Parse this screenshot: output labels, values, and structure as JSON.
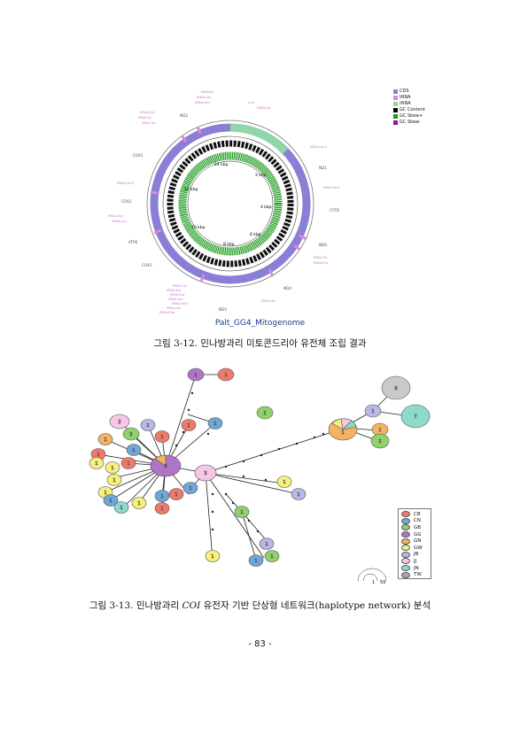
{
  "figure1": {
    "legend": [
      {
        "label": "CDS",
        "color": "#8a7fd6"
      },
      {
        "label": "tRNA",
        "color": "#d68ad6"
      },
      {
        "label": "rRNA",
        "color": "#8fd6a8"
      },
      {
        "label": "GC Content",
        "color": "#000000"
      },
      {
        "label": "GC Skew+",
        "color": "#1a9a1a"
      },
      {
        "label": "GC Skew-",
        "color": "#8a1a8a"
      }
    ],
    "inner_labels": {
      "k0": "24 kbp",
      "k1": "2 kbp",
      "k2": "4 kbp",
      "k3": "6 kbp",
      "k4": "8 kbp",
      "k5": "10 kbp",
      "k6": "12 kbp"
    },
    "gene_labels": {
      "nd2": "ND2",
      "cox1": "COX1",
      "cox2": "COX2",
      "atp6": "ATP6",
      "cox3": "COX3",
      "nd3": "ND3",
      "nd5": "ND5",
      "nd4": "ND4",
      "nd6": "ND6",
      "cytb": "CYTB",
      "nd1": "ND1",
      "trna_ile": "tRNA-Ile",
      "trna_gln": "tRNA-Gln",
      "trna_met": "tRNA-Met",
      "trna_cys": "tRNA-Cys",
      "trna_tyr": "tRNA-Tyr",
      "trna_trp": "tRNA-Trp",
      "trna_leu2": "tRNA-Leu2",
      "trna_asp": "tRNA-Asp",
      "trna_lys": "tRNA-Lys",
      "trna_gly": "tRNA-Gly",
      "trna_ala": "tRNA-Ala",
      "trna_arg": "tRNA-Arg",
      "trna_asn": "tRNA-Asn",
      "trna_ser1": "tRNA-Ser1",
      "trna_glu": "tRNA-Glu",
      "trna_phe": "tRNA-Phe",
      "trna_his": "tRNA-His",
      "trna_thr": "tRNA-Thr",
      "trna_pro": "tRNA-Pro",
      "trna_ser2": "tRNA-Ser2",
      "trna_leu1": "tRNA-Leu1",
      "trna_val": "tRNA-Val",
      "rrnl": "rrnL"
    },
    "genome_title": "Palt_GG4_Mitogenome",
    "caption": "그림 3-12. 민나방과리 미토콘드리아 유전체 조립 결과"
  },
  "figure2": {
    "legend": [
      {
        "label": "CB",
        "color": "#f07a6a"
      },
      {
        "label": "CN",
        "color": "#6fa7d8"
      },
      {
        "label": "GB",
        "color": "#8fd16a"
      },
      {
        "label": "GG",
        "color": "#b074c6"
      },
      {
        "label": "GN",
        "color": "#f5b361"
      },
      {
        "label": "GW",
        "color": "#f7f07a"
      },
      {
        "label": "JB",
        "color": "#b9b7e6"
      },
      {
        "label": "JJ",
        "color": "#f6c6e6"
      },
      {
        "label": "JN",
        "color": "#8fd9cb"
      },
      {
        "label": "TW",
        "color": "#a9a9a9"
      }
    ],
    "nodes": {
      "big": "8",
      "center": "3",
      "n6": "6",
      "n7": "7",
      "n2": "2",
      "n1": "1"
    },
    "scale_labels": {
      "min": "1",
      "max": "59"
    },
    "caption_pre": "그림 3-13. 민나방과리 ",
    "caption_gene": "COI",
    "caption_post": " 유전자 기반 단상형 네트워크(haplotype network) 분석"
  },
  "page_number": "- 83 -"
}
